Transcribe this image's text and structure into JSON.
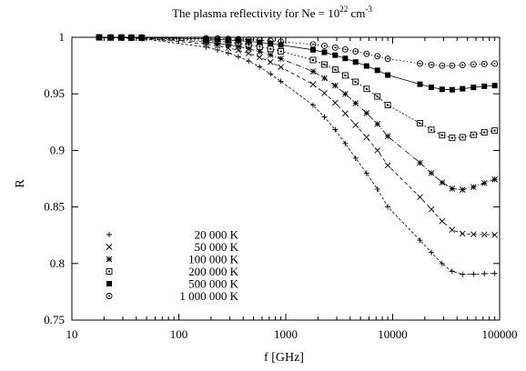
{
  "chart_data": {
    "type": "scatter",
    "title": {
      "main": "The plasma reflectivity for  Ne = 10",
      "exp": "22",
      "unit": " cm",
      "unit_exp": "-3"
    },
    "xlabel": "f [GHz]",
    "ylabel": "R",
    "x_scale": "log",
    "xlim": [
      10,
      100000
    ],
    "ylim": [
      0.75,
      1.0
    ],
    "x_ticks": [
      10,
      100,
      1000,
      10000,
      100000
    ],
    "x_tick_labels": [
      "10",
      "100",
      "1000",
      "10000",
      "100000"
    ],
    "y_ticks": [
      0.75,
      0.8,
      0.85,
      0.9,
      0.95,
      1.0
    ],
    "y_tick_labels": [
      "0.75",
      "0.8",
      "0.85",
      "0.9",
      "0.95",
      "1"
    ],
    "grid": false,
    "legend_position": "bottom-left",
    "markers": [
      "plus",
      "cross",
      "star",
      "square-open",
      "square-filled",
      "circle-open"
    ],
    "x": [
      18,
      23,
      29,
      36,
      45,
      180,
      230,
      290,
      360,
      450,
      570,
      720,
      900,
      1800,
      2300,
      2900,
      3600,
      4500,
      5700,
      7200,
      9000,
      18000,
      23000,
      29000,
      36000,
      45000,
      57000,
      72000,
      90000
    ],
    "series": [
      {
        "name": "20 000 K",
        "marker": "plus",
        "values": [
          0.9996,
          0.9994,
          0.9992,
          0.999,
          0.9988,
          0.9913,
          0.9888,
          0.986,
          0.9829,
          0.9789,
          0.9738,
          0.9677,
          0.9611,
          0.94,
          0.9295,
          0.9183,
          0.9061,
          0.8931,
          0.8798,
          0.8658,
          0.8501,
          0.8206,
          0.8097,
          0.7999,
          0.7931,
          0.7904,
          0.7906,
          0.791,
          0.7912
        ]
      },
      {
        "name": "50 000 K",
        "marker": "cross",
        "values": [
          0.9997,
          0.9996,
          0.9995,
          0.9994,
          0.9992,
          0.9941,
          0.9925,
          0.9906,
          0.9885,
          0.9858,
          0.9823,
          0.9781,
          0.9736,
          0.9584,
          0.9506,
          0.9421,
          0.9327,
          0.9224,
          0.9116,
          0.9,
          0.8868,
          0.8587,
          0.8479,
          0.8374,
          0.8298,
          0.8264,
          0.8258,
          0.8256,
          0.8253
        ]
      },
      {
        "name": "100 000 K",
        "marker": "star",
        "values": [
          0.9998,
          0.9997,
          0.9996,
          0.9995,
          0.9994,
          0.9958,
          0.9947,
          0.9934,
          0.9918,
          0.9899,
          0.9874,
          0.9844,
          0.9811,
          0.9698,
          0.9639,
          0.9573,
          0.9499,
          0.9417,
          0.933,
          0.9234,
          0.9125,
          0.889,
          0.88,
          0.8716,
          0.8662,
          0.8652,
          0.8676,
          0.8711,
          0.8744
        ]
      },
      {
        "name": "200 000 K",
        "marker": "square-open",
        "values": [
          0.9999,
          0.9998,
          0.9998,
          0.9997,
          0.9996,
          0.9973,
          0.9965,
          0.9957,
          0.9947,
          0.9934,
          0.9917,
          0.9897,
          0.9875,
          0.9799,
          0.9759,
          0.9714,
          0.9663,
          0.9606,
          0.9544,
          0.9477,
          0.9401,
          0.924,
          0.9182,
          0.9134,
          0.9111,
          0.9116,
          0.9138,
          0.9159,
          0.9175
        ]
      },
      {
        "name": "500 000 K",
        "marker": "square-filled",
        "values": [
          0.9999,
          0.9999,
          0.9999,
          0.9998,
          0.9998,
          0.9985,
          0.9981,
          0.9976,
          0.9971,
          0.9964,
          0.9955,
          0.9944,
          0.9932,
          0.9889,
          0.9867,
          0.9842,
          0.9813,
          0.9781,
          0.9746,
          0.9708,
          0.9666,
          0.9585,
          0.9558,
          0.954,
          0.9536,
          0.9545,
          0.9557,
          0.9567,
          0.9573
        ]
      },
      {
        "name": "1 000 000 K",
        "marker": "circle-open",
        "values": [
          1.0,
          0.9999,
          0.9999,
          0.9999,
          0.9999,
          0.9991,
          0.9989,
          0.9986,
          0.9983,
          0.9979,
          0.9974,
          0.9968,
          0.9961,
          0.9937,
          0.9924,
          0.9909,
          0.9893,
          0.9875,
          0.9854,
          0.9833,
          0.981,
          0.9768,
          0.9756,
          0.9749,
          0.9749,
          0.9754,
          0.976,
          0.9764,
          0.9767
        ]
      }
    ]
  }
}
